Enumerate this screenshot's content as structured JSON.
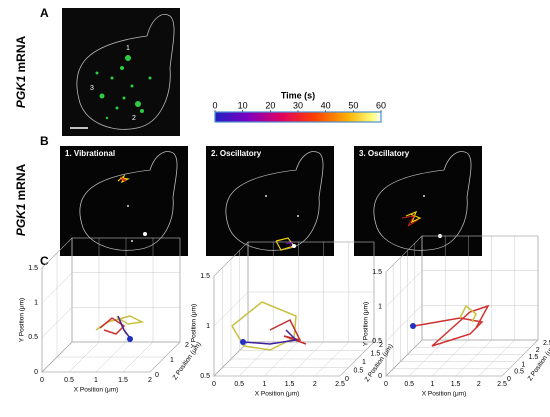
{
  "panel_a": {
    "label": "A",
    "gene": "PGK1",
    "gene_suffix": "mRNA",
    "spot_labels": [
      "1",
      "3",
      "2"
    ],
    "colorbar": {
      "title": "Time (s)",
      "ticks": [
        0,
        10,
        20,
        30,
        40,
        50,
        60
      ]
    }
  },
  "panel_b": {
    "label": "B",
    "gene": "PGK1",
    "gene_suffix": "mRNA",
    "titles": [
      "1. Vibrational",
      "2. Oscillatory",
      "3. Oscillatory"
    ]
  },
  "panel_c": {
    "label": "C",
    "plots": [
      {
        "xlabel": "X Position (μm)",
        "ylabel": "Y Position (μm)",
        "zlabel": "Z Position (μm)",
        "xticks": [
          0,
          0.5,
          1,
          1.5,
          2
        ],
        "yticks": [
          0,
          0.5,
          1,
          1.5
        ],
        "zticks": [
          0,
          1,
          2
        ]
      },
      {
        "xlabel": "X Position (μm)",
        "ylabel": "Y Position (μm)",
        "zlabel": "Z Position (μm)",
        "xticks": [
          0,
          0.5,
          1,
          1.5,
          2,
          2.5
        ],
        "yticks": [
          0.5,
          1,
          1.5
        ],
        "zticks": [
          0,
          0.5,
          1,
          1.5,
          2
        ]
      },
      {
        "xlabel": "X Position (μm)",
        "ylabel": "Y Position (μm)",
        "zlabel": "Z Position (μm)",
        "xticks": [
          0,
          0.5,
          1,
          1.5,
          2,
          2.5
        ],
        "yticks": [
          0,
          0.5,
          1,
          1.5
        ],
        "zticks": [
          0,
          0.5,
          1,
          1.5,
          2,
          2.5
        ]
      }
    ]
  }
}
